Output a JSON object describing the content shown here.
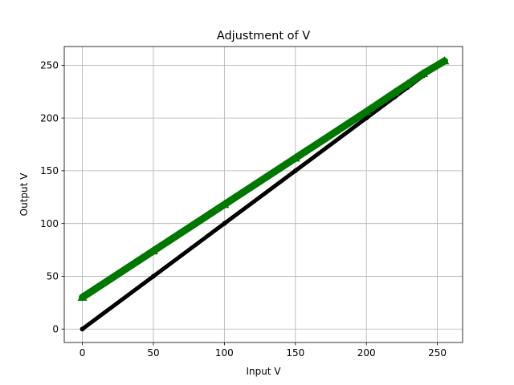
{
  "chart_data": {
    "type": "line",
    "title": "Adjustment of V",
    "xlabel": "Input V",
    "ylabel": "Output V",
    "xlim": [
      -12.75,
      267.75
    ],
    "ylim": [
      -12.75,
      267.75
    ],
    "xticks": [
      0,
      50,
      100,
      150,
      200,
      250
    ],
    "yticks": [
      0,
      50,
      100,
      150,
      200,
      250
    ],
    "grid": true,
    "series": [
      {
        "color": "#000000",
        "marker": "circle",
        "x": [
          0,
          50,
          100,
          150,
          200,
          220,
          229,
          240,
          255
        ],
        "y": [
          0,
          50,
          100,
          150,
          200,
          220,
          229,
          240,
          255
        ]
      },
      {
        "color": "#007700",
        "marker": "triangle-up",
        "x": [
          0,
          50,
          100,
          150,
          200,
          220,
          229,
          240,
          255
        ],
        "y": [
          30,
          74,
          118,
          162,
          206,
          224,
          232,
          242,
          254
        ]
      }
    ]
  }
}
